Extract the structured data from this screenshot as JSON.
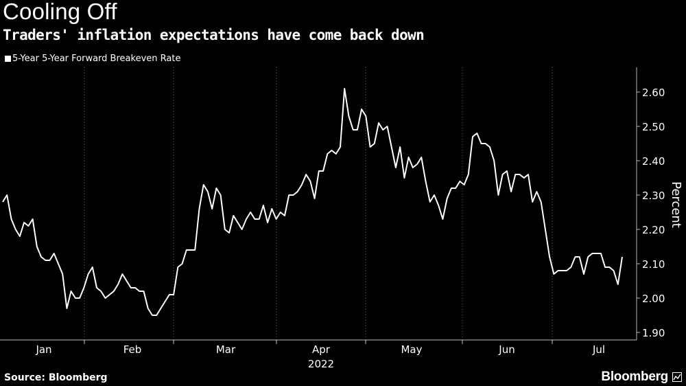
{
  "chart_data": {
    "type": "line",
    "title": "Cooling Off",
    "subtitle": "Traders' inflation expectations have come back down",
    "ylabel": "Percent",
    "xlabel": "2022",
    "ylim": [
      1.88,
      2.66
    ],
    "yticks": [
      "2.60",
      "2.50",
      "2.40",
      "2.30",
      "2.20",
      "2.10",
      "2.00",
      "1.90"
    ],
    "ytick_values": [
      2.6,
      2.5,
      2.4,
      2.3,
      2.2,
      2.1,
      2.0,
      1.9
    ],
    "xticks": [
      "Jan",
      "Feb",
      "Mar",
      "Apr",
      "May",
      "Jun",
      "Jul"
    ],
    "legend_position": "top-left",
    "grid": "vertical dotted",
    "series": [
      {
        "name": "5-Year 5-Year Forward Breakeven Rate",
        "color": "#ffffff",
        "values": [
          2.28,
          2.3,
          2.23,
          2.2,
          2.18,
          2.22,
          2.21,
          2.23,
          2.15,
          2.12,
          2.11,
          2.11,
          2.13,
          2.1,
          2.07,
          1.97,
          2.02,
          2.0,
          2.0,
          2.03,
          2.07,
          2.09,
          2.03,
          2.02,
          2.0,
          2.01,
          2.02,
          2.04,
          2.07,
          2.05,
          2.03,
          2.03,
          2.02,
          2.02,
          1.97,
          1.95,
          1.95,
          1.97,
          1.99,
          2.01,
          2.01,
          2.09,
          2.1,
          2.14,
          2.14,
          2.14,
          2.26,
          2.33,
          2.31,
          2.26,
          2.32,
          2.3,
          2.2,
          2.19,
          2.24,
          2.22,
          2.2,
          2.23,
          2.25,
          2.23,
          2.23,
          2.27,
          2.22,
          2.26,
          2.23,
          2.25,
          2.24,
          2.3,
          2.3,
          2.31,
          2.33,
          2.36,
          2.34,
          2.29,
          2.37,
          2.37,
          2.42,
          2.43,
          2.42,
          2.44,
          2.61,
          2.53,
          2.49,
          2.49,
          2.55,
          2.53,
          2.44,
          2.45,
          2.51,
          2.49,
          2.5,
          2.44,
          2.38,
          2.44,
          2.35,
          2.41,
          2.38,
          2.39,
          2.41,
          2.34,
          2.28,
          2.3,
          2.27,
          2.23,
          2.29,
          2.32,
          2.32,
          2.34,
          2.33,
          2.36,
          2.47,
          2.48,
          2.45,
          2.45,
          2.44,
          2.4,
          2.3,
          2.36,
          2.37,
          2.31,
          2.36,
          2.36,
          2.35,
          2.36,
          2.28,
          2.31,
          2.28,
          2.2,
          2.12,
          2.07,
          2.08,
          2.08,
          2.08,
          2.09,
          2.12,
          2.12,
          2.07,
          2.12,
          2.13,
          2.13,
          2.13,
          2.09,
          2.09,
          2.08,
          2.04,
          2.12
        ]
      }
    ]
  },
  "legend": {
    "label": "5-Year 5-Year Forward Breakeven Rate"
  },
  "footer": {
    "source": "Source: Bloomberg",
    "brand": "Bloomberg"
  }
}
